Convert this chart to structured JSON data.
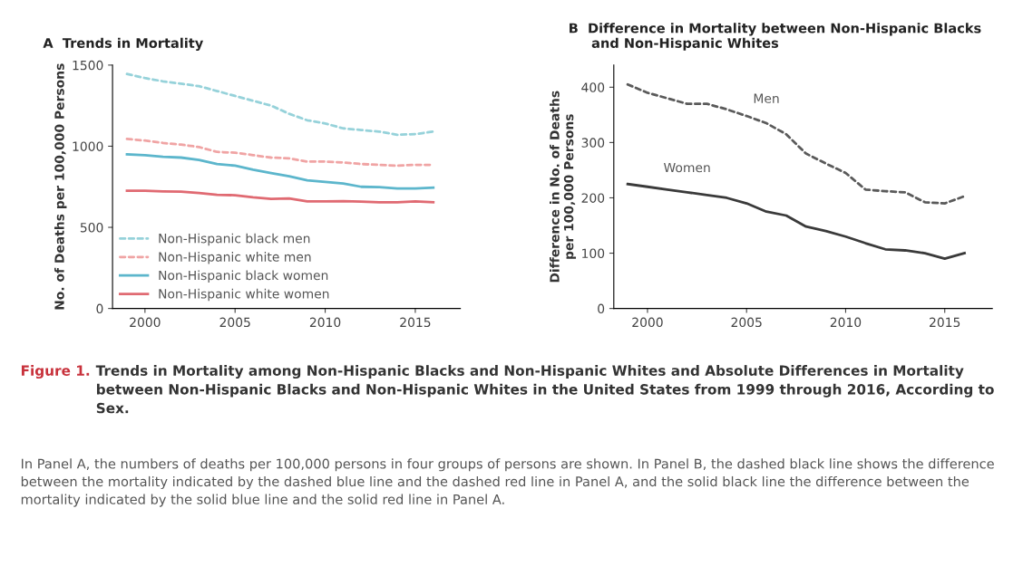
{
  "chart_data": [
    {
      "type": "line",
      "title": "A  Trends in Mortality",
      "ylabel": "No. of Deaths per 100,000 Persons",
      "x": [
        1999,
        2000,
        2001,
        2002,
        2003,
        2004,
        2005,
        2006,
        2007,
        2008,
        2009,
        2010,
        2011,
        2012,
        2013,
        2014,
        2015,
        2016
      ],
      "xlim": [
        1998.2,
        2017.5
      ],
      "xticks": [
        2000,
        2005,
        2010,
        2015
      ],
      "ylim": [
        0,
        1500
      ],
      "yticks": [
        0,
        500,
        1000,
        1500
      ],
      "grid": false,
      "legend": "bottom left",
      "marker": "none",
      "series": [
        {
          "name": "Non-Hispanic black men",
          "color": "#96d2da",
          "line_style": "dashed",
          "values": [
            1445,
            1420,
            1400,
            1385,
            1370,
            1340,
            1310,
            1280,
            1250,
            1200,
            1160,
            1140,
            1110,
            1100,
            1090,
            1070,
            1075,
            1090
          ]
        },
        {
          "name": "Non-Hispanic white men",
          "color": "#f0a4a4",
          "line_style": "dashed",
          "values": [
            1045,
            1035,
            1020,
            1010,
            995,
            965,
            960,
            945,
            930,
            925,
            905,
            905,
            900,
            890,
            885,
            880,
            885,
            885
          ]
        },
        {
          "name": "Non-Hispanic black women",
          "color": "#5cb6cc",
          "line_style": "solid",
          "values": [
            950,
            945,
            935,
            930,
            915,
            890,
            880,
            855,
            835,
            815,
            790,
            780,
            770,
            750,
            748,
            740,
            740,
            745
          ]
        },
        {
          "name": "Non-Hispanic white women",
          "color": "#e06a72",
          "line_style": "solid",
          "values": [
            725,
            725,
            722,
            720,
            712,
            700,
            698,
            685,
            675,
            678,
            660,
            660,
            662,
            658,
            655,
            655,
            660,
            655
          ]
        }
      ],
      "annotations": [
        "Figure 1.",
        "Trends in Mortality among Non-Hispanic Blacks and Non-Hispanic Whites and Absolute Differences in Mortality between Non-Hispanic Blacks and Non-Hispanic Whites in the United States from 1999 through 2016, According to Sex.",
        "In Panel A, the numbers of deaths per 100,000 persons in four groups of persons are shown. In Panel B, the dashed black line shows the difference between the mortality indicated by the dashed blue line and the dashed red line in Panel A, and the solid black line the difference between the mortality indicated by the solid blue line and the solid red line in Panel A."
      ]
    },
    {
      "type": "line",
      "title": "B  Difference in Mortality between Non-Hispanic Blacks\n     and Non-Hispanic Whites",
      "ylabel": "Difference in No. of Deaths\nper 100,000 Persons",
      "x": [
        1999,
        2000,
        2001,
        2002,
        2003,
        2004,
        2005,
        2006,
        2007,
        2008,
        2009,
        2010,
        2011,
        2012,
        2013,
        2014,
        2015,
        2016
      ],
      "xlim": [
        1998.3,
        2017.4
      ],
      "xticks": [
        2000,
        2005,
        2010,
        2015
      ],
      "ylim": [
        0,
        440
      ],
      "yticks": [
        0,
        100,
        200,
        300,
        400
      ],
      "grid": false,
      "legend": false,
      "marker": "none",
      "series": [
        {
          "name": "Men",
          "color": "#5a5a5a",
          "line_style": "dashed",
          "values": [
            405,
            390,
            380,
            370,
            370,
            360,
            348,
            335,
            315,
            280,
            262,
            245,
            215,
            212,
            210,
            192,
            190,
            203
          ]
        },
        {
          "name": "Women",
          "color": "#3a3a3a",
          "line_style": "solid",
          "values": [
            225,
            220,
            215,
            210,
            205,
            200,
            190,
            175,
            168,
            148,
            140,
            130,
            118,
            107,
            105,
            100,
            90,
            100
          ]
        }
      ]
    }
  ]
}
